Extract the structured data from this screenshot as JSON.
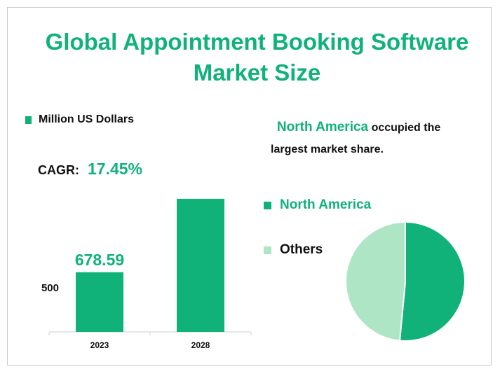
{
  "title_line1": "Global Appointment Booking Software",
  "title_line2": "Market Size",
  "units_label": "Million US Dollars",
  "cagr_label": "CAGR:",
  "cagr_value": "17.45%",
  "note": {
    "highlight": "North America",
    "rest_line1": "occupied the",
    "rest_line2": "largest market share."
  },
  "colors": {
    "accent": "#10b27a",
    "others": "#aee5c5"
  },
  "chart_data": [
    {
      "type": "bar",
      "categories": [
        "2023",
        "2028"
      ],
      "values": [
        678.59,
        1514.0
      ],
      "data_labels": [
        "678.59",
        ""
      ],
      "y_tick_labels": [
        "500"
      ],
      "ylim": [
        0,
        1800
      ]
    },
    {
      "type": "pie",
      "labels": [
        "North America",
        "Others"
      ],
      "values": [
        51.5,
        48.5
      ]
    }
  ]
}
